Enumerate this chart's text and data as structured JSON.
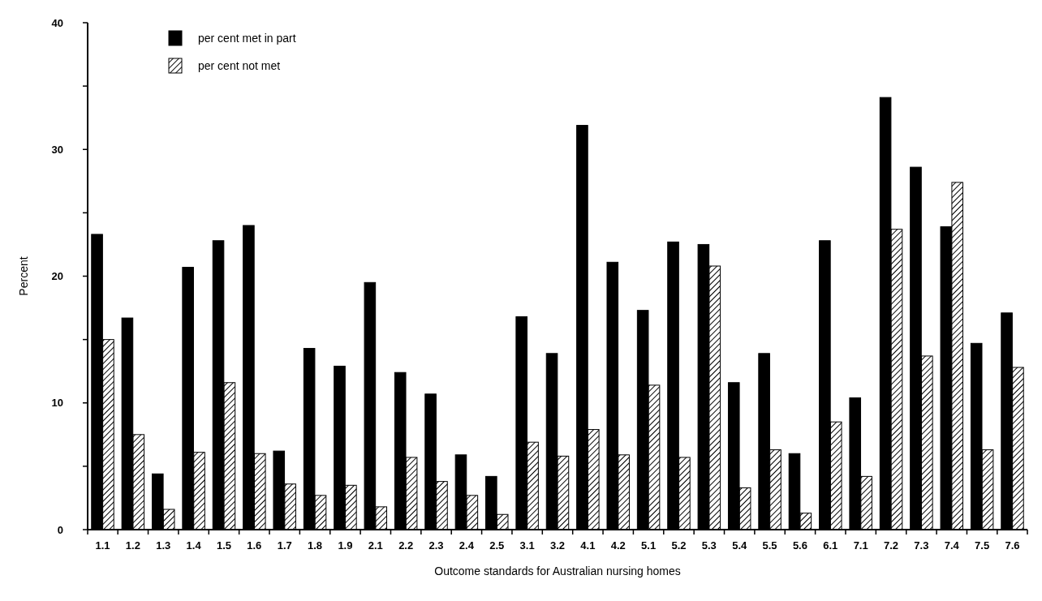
{
  "chart_data": {
    "type": "bar",
    "xlabel": "Outcome standards for Australian nursing homes",
    "ylabel": "Percent",
    "categories": [
      "1.1",
      "1.2",
      "1.3",
      "1.4",
      "1.5",
      "1.6",
      "1.7",
      "1.8",
      "1.9",
      "2.1",
      "2.2",
      "2.3",
      "2.4",
      "2.5",
      "3.1",
      "3.2",
      "4.1",
      "4.2",
      "5.1",
      "5.2",
      "5.3",
      "5.4",
      "5.5",
      "5.6",
      "6.1",
      "7.1",
      "7.2",
      "7.3",
      "7.4",
      "7.5",
      "7.6"
    ],
    "series": [
      {
        "name": "per cent met in part",
        "color": "#000000",
        "values": [
          23.3,
          16.7,
          4.4,
          20.7,
          22.8,
          24.0,
          6.2,
          14.3,
          12.9,
          19.5,
          12.4,
          10.7,
          5.9,
          4.2,
          16.8,
          13.9,
          31.9,
          21.1,
          17.3,
          22.7,
          22.5,
          11.6,
          13.9,
          6.0,
          22.8,
          10.4,
          34.1,
          28.6,
          23.9,
          14.7,
          17.1
        ]
      },
      {
        "name": "per cent not met",
        "color": "#000000",
        "values": [
          15.0,
          7.5,
          1.6,
          6.1,
          11.6,
          6.0,
          3.6,
          2.7,
          3.5,
          1.8,
          5.7,
          3.8,
          2.7,
          1.2,
          6.9,
          5.8,
          7.9,
          5.9,
          11.4,
          5.7,
          20.8,
          3.3,
          6.3,
          1.3,
          8.5,
          4.2,
          23.7,
          13.7,
          27.4,
          6.3,
          12.8
        ]
      }
    ],
    "ylim": [
      0,
      40
    ],
    "yticks": [
      0,
      {
        "value": 5,
        "label": null
      },
      10,
      {
        "value": 15,
        "label": null
      },
      20,
      {
        "value": 25,
        "label": null
      },
      30,
      {
        "value": 35,
        "label": null
      },
      40
    ],
    "grid": false,
    "legend": "top left"
  }
}
